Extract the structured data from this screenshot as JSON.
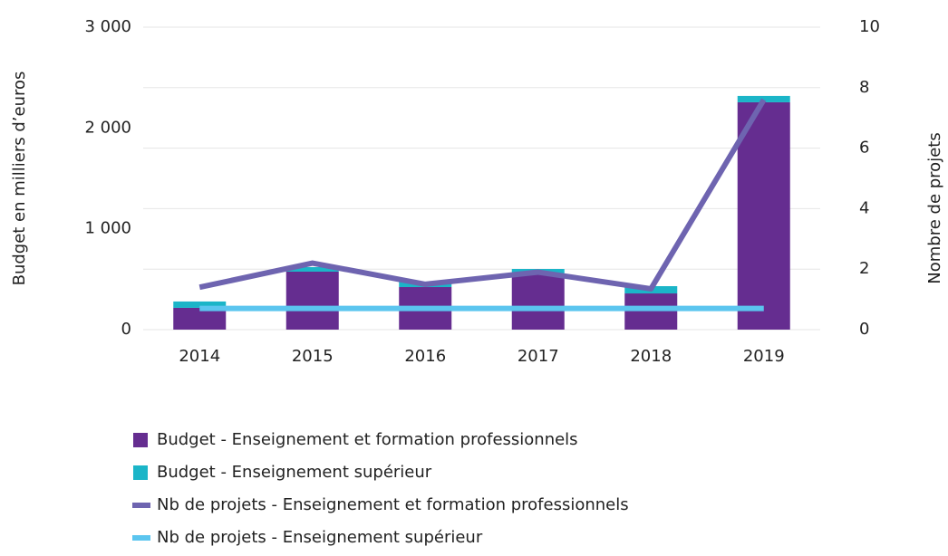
{
  "chart_data": {
    "type": "bar",
    "categories": [
      "2014",
      "2015",
      "2016",
      "2017",
      "2018",
      "2019"
    ],
    "series": [
      {
        "name": "Budget - Enseignement et formation professionnels",
        "color": "#652d90",
        "type": "bar",
        "values": [
          216,
          575,
          422,
          557,
          359,
          2255
        ]
      },
      {
        "name": "Budget - Enseignement supérieur",
        "color": "#1bb5c8",
        "type": "bar",
        "values": [
          63,
          45,
          54,
          45,
          72,
          63
        ]
      },
      {
        "name": "Nb de projets - Enseignement et formation professionnels",
        "color": "#6e64b0",
        "type": "line",
        "axis": "y2",
        "values": [
          1.4,
          2.2,
          1.5,
          1.9,
          1.35,
          7.6
        ]
      },
      {
        "name": "Nb de projets - Enseignement supérieur",
        "color": "#5bc5ef",
        "type": "line",
        "axis": "y2",
        "values": [
          0.7,
          0.7,
          0.7,
          0.7,
          0.7,
          0.7
        ]
      }
    ],
    "y_label": "Budget en milliers d’euros",
    "y2_label": "Nombre de projets",
    "ylim": [
      0,
      3000
    ],
    "yticks": [
      {
        "value": 0,
        "label": "0"
      },
      {
        "value": 1000,
        "label": "1 000"
      },
      {
        "value": 2000,
        "label": "2 000"
      },
      {
        "value": 3000,
        "label": "3 000"
      }
    ],
    "y2lim": [
      0,
      10
    ],
    "y2ticks": [
      0,
      2,
      4,
      6,
      8,
      10
    ],
    "stacked": true,
    "grid": true,
    "legend": "bottom"
  }
}
